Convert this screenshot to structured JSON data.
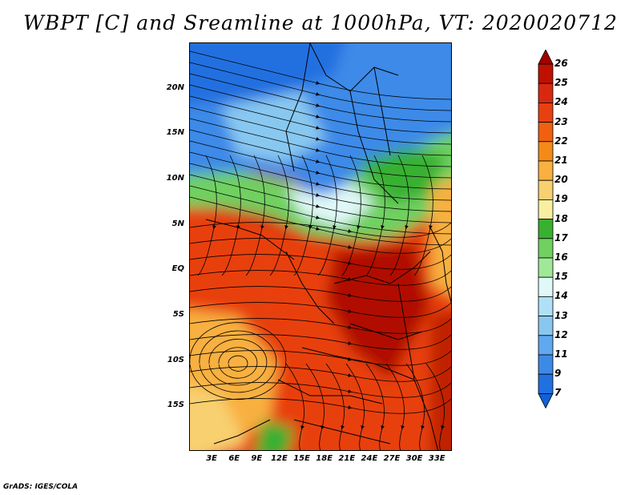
{
  "title": "WBPT [C] and Sreamline at 1000hPa, VT: 2020020712",
  "footer": "GrADS: IGES/COLA",
  "map": {
    "lat_labels": [
      "20N",
      "15N",
      "10N",
      "5N",
      "EQ",
      "5S",
      "10S",
      "15S"
    ],
    "lat_values": [
      20,
      15,
      10,
      5,
      0,
      -5,
      -10,
      -15
    ],
    "lon_labels": [
      "3E",
      "6E",
      "9E",
      "12E",
      "15E",
      "18E",
      "21E",
      "24E",
      "27E",
      "30E",
      "33E"
    ],
    "lon_values": [
      3,
      6,
      9,
      12,
      15,
      18,
      21,
      24,
      27,
      30,
      33
    ],
    "lon_range": [
      0,
      35
    ],
    "lat_range": [
      -20,
      25
    ]
  },
  "legend": {
    "labels": [
      "26",
      "25",
      "24",
      "23",
      "22",
      "21",
      "20",
      "19",
      "18",
      "17",
      "16",
      "15",
      "14",
      "13",
      "12",
      "11",
      "9",
      "7"
    ],
    "colors": [
      "#a00000",
      "#c01000",
      "#d82810",
      "#e84010",
      "#f06010",
      "#f48a18",
      "#f8b040",
      "#f8d070",
      "#f8f0a0",
      "#38b030",
      "#70d060",
      "#a0e898",
      "#e0f8f8",
      "#b0e0f8",
      "#88c8f0",
      "#60a8f0",
      "#3c8ae8",
      "#2070e0",
      "#1060d8"
    ]
  }
}
